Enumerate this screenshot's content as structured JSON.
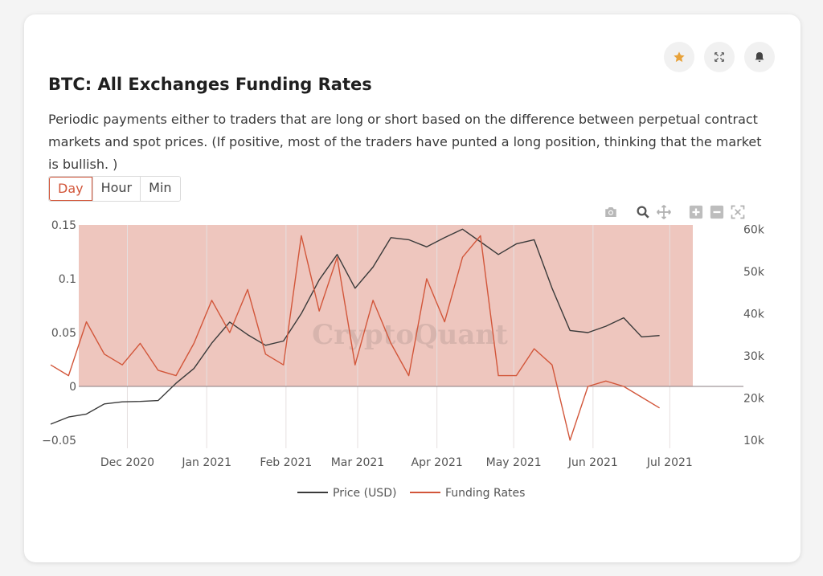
{
  "widget": {
    "title": "BTC: All Exchanges Funding Rates",
    "description": "Periodic payments either to traders that are long or short based on the difference between perpetual contract markets and spot prices. (If positive, most of the traders have punted a long position, thinking that the market is bullish. )",
    "tabs": [
      {
        "label": "Day",
        "active": true
      },
      {
        "label": "Hour",
        "active": false
      },
      {
        "label": "Min",
        "active": false
      }
    ],
    "actions": [
      "star-icon",
      "expand-icon",
      "bell-icon"
    ],
    "modebar": [
      "camera-icon",
      "zoom-icon",
      "pan-icon",
      "zoom-in-icon",
      "zoom-out-icon",
      "autoscale-icon"
    ]
  },
  "colors": {
    "accent": "#d2563a",
    "funding_line": "#d2563a",
    "price_line": "#3a3a3a",
    "positive_band": "#e8b3a8",
    "star": "#e8a23a"
  },
  "chart_data": {
    "type": "line",
    "watermark": "CryptoQuant",
    "x_dates": [
      "2020-11-01",
      "2020-11-08",
      "2020-11-15",
      "2020-11-22",
      "2020-11-29",
      "2020-12-06",
      "2020-12-13",
      "2020-12-20",
      "2020-12-27",
      "2021-01-03",
      "2021-01-10",
      "2021-01-17",
      "2021-01-24",
      "2021-01-31",
      "2021-02-07",
      "2021-02-14",
      "2021-02-21",
      "2021-02-28",
      "2021-03-07",
      "2021-03-14",
      "2021-03-21",
      "2021-03-28",
      "2021-04-04",
      "2021-04-11",
      "2021-04-18",
      "2021-04-25",
      "2021-05-02",
      "2021-05-09",
      "2021-05-16",
      "2021-05-23",
      "2021-05-30",
      "2021-06-06",
      "2021-06-13",
      "2021-06-20",
      "2021-06-27"
    ],
    "x_ticks": [
      "Dec 2020",
      "Jan 2021",
      "Feb 2021",
      "Mar 2021",
      "Apr 2021",
      "May 2021",
      "Jun 2021",
      "Jul 2021"
    ],
    "x_tick_dates": [
      "2020-12-01",
      "2021-01-01",
      "2021-02-01",
      "2021-03-01",
      "2021-04-01",
      "2021-05-01",
      "2021-06-01",
      "2021-07-01"
    ],
    "y_left": {
      "ticks": [
        "0.15",
        "0.1",
        "0.05",
        "0",
        "−0.05"
      ],
      "tick_values": [
        0.15,
        0.1,
        0.05,
        0,
        -0.05
      ],
      "range": [
        -0.05,
        0.15
      ]
    },
    "y_right": {
      "ticks": [
        "60k",
        "50k",
        "40k",
        "30k",
        "20k",
        "10k"
      ],
      "tick_values": [
        60000,
        50000,
        40000,
        30000,
        20000,
        10000
      ],
      "range": [
        10000,
        61000
      ]
    },
    "legend_position": "bottom",
    "series": [
      {
        "name": "Price (USD)",
        "axis": "right",
        "values": [
          13800,
          15500,
          16200,
          18600,
          19100,
          19200,
          19400,
          23500,
          27000,
          33000,
          38000,
          35000,
          32500,
          33500,
          40000,
          48000,
          54000,
          46000,
          51000,
          58000,
          57500,
          55800,
          58000,
          60000,
          57000,
          54000,
          56500,
          57500,
          46000,
          36000,
          35500,
          37000,
          39000,
          34500,
          34800
        ]
      },
      {
        "name": "Funding Rates",
        "axis": "left",
        "values": [
          0.02,
          0.01,
          0.06,
          0.03,
          0.02,
          0.04,
          0.015,
          0.01,
          0.04,
          0.08,
          0.05,
          0.09,
          0.03,
          0.02,
          0.14,
          0.07,
          0.12,
          0.02,
          0.08,
          0.04,
          0.01,
          0.1,
          0.06,
          0.12,
          0.14,
          0.01,
          0.01,
          0.035,
          0.02,
          -0.05,
          0.0,
          0.005,
          0.0,
          -0.01,
          -0.02
        ]
      }
    ]
  }
}
